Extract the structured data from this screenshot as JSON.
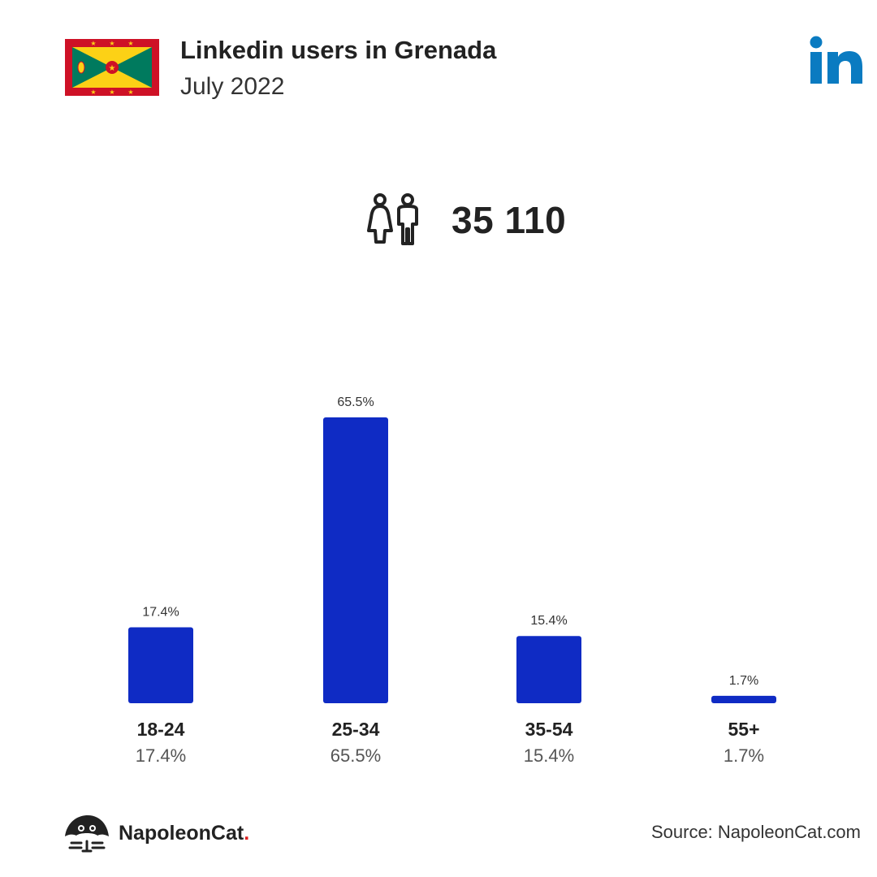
{
  "header": {
    "title": "Linkedin users in Grenada",
    "subtitle": "July 2022"
  },
  "icons": {
    "flag": "grenada-flag-icon",
    "network": "linkedin-logo-icon",
    "users": "users-icon",
    "brand": "napoleoncat-logo-icon"
  },
  "total_users": "35 110",
  "colors": {
    "bar": "#0F2BC4",
    "linkedin": "#0A7BC1",
    "flag_red": "#CE1126",
    "flag_yellow": "#FCD116",
    "flag_green": "#007A5E"
  },
  "chart_data": {
    "type": "bar",
    "categories": [
      "18-24",
      "25-34",
      "35-54",
      "55+"
    ],
    "values": [
      17.4,
      65.5,
      15.4,
      1.7
    ],
    "value_labels": [
      "17.4%",
      "65.5%",
      "15.4%",
      "1.7%"
    ],
    "unit": "%",
    "ylim": [
      0,
      65.5
    ],
    "grid": false
  },
  "footer": {
    "brand_name": "NapoleonCat",
    "brand_dot": ".",
    "source": "Source: NapoleonCat.com"
  }
}
